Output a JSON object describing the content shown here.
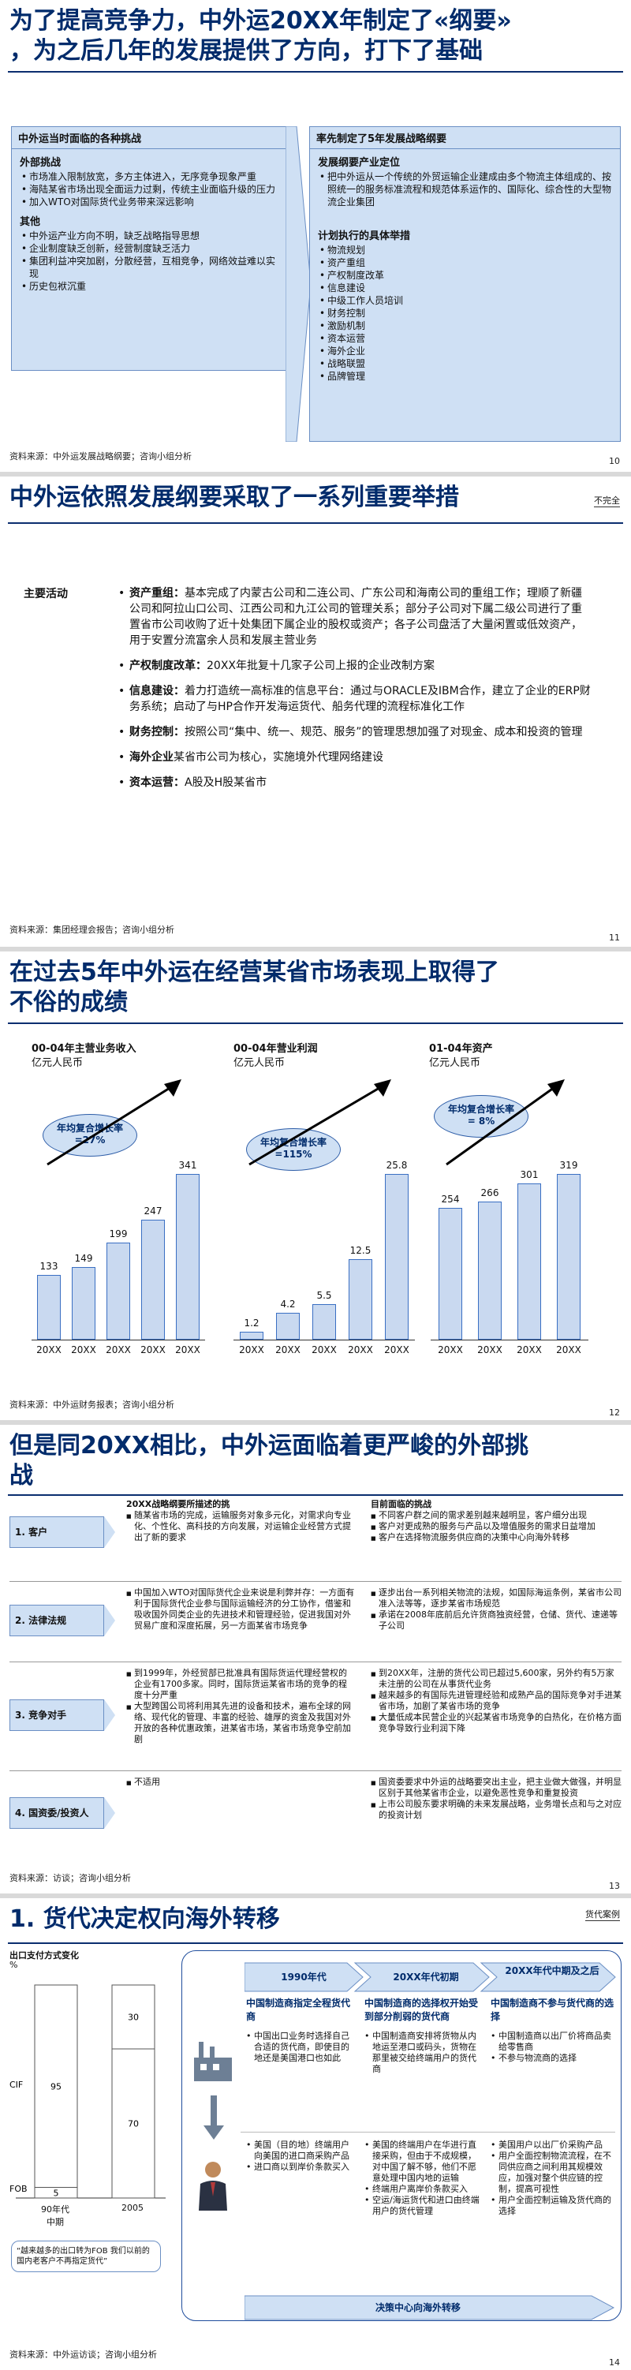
{
  "slides": [
    {
      "title_line1": "为了提高竞争力，中外运20XX年制定了«纲要»",
      "title_line2": "，为之后几年的发展提供了方向，打下了基础",
      "left_panel": {
        "title": "中外运当时面临的各种挑战",
        "sec1_title": "外部挑战",
        "sec1_items": [
          "市场准入限制放宽，多方主体进入，无序竞争现象严重",
          "海陆某省市场出现全面运力过剩，传统主业面临升级的压力",
          "加入WTO对国际货代业务带来深远影响"
        ],
        "sec2_title": "其他",
        "sec2_items": [
          "中外运产业方向不明，缺乏战略指导思想",
          "企业制度缺乏创新，经营制度缺乏活力",
          "集团利益冲突加剧，分散经营，互相竞争，网络效益难以实现",
          "历史包袱沉重"
        ]
      },
      "right_panel": {
        "title": "率先制定了5年发展战略纲要",
        "sec1_title": "发展纲要产业定位",
        "sec1_items": [
          "把中外运从一个传统的外贸运输企业建成由多个物流主体组成的、按照统一的服务标准流程和规范体系运作的、国际化、综合性的大型物流企业集团"
        ],
        "sec2_title": "计划执行的具体举措",
        "sec2_items": [
          "物流规划",
          "资产重组",
          "产权制度改革",
          "信息建设",
          "中级工作人员培训",
          "财务控制",
          "激励机制",
          "资本运营",
          "海外企业",
          "战略联盟",
          "品牌管理"
        ]
      },
      "source": "资料来源：中外运发展战略纲要；咨询小组分析",
      "page": "10"
    },
    {
      "title": "中外运依照发展纲要采取了一系列重要举措",
      "tag": "不完全",
      "label": "主要活动",
      "items": [
        {
          "head": "资产重组：",
          "text": "基本完成了内蒙古公司和二连公司、广东公司和海南公司的重组工作；理顺了新疆公司和阿拉山口公司、江西公司和九江公司的管理关系；部分子公司对下属二级公司进行了重置省市公司收购了近十处集团下属企业的股权或资产；各子公司盘活了大量闲置或低效资产，用于安置分流富余人员和发展主营业务"
        },
        {
          "head": "产权制度改革：",
          "text": "20XX年批复十几家子公司上报的企业改制方案"
        },
        {
          "head": "信息建设：",
          "text": "着力打造统一高标准的信息平台：通过与ORACLE及IBM合作，建立了企业的ERP财务系统；启动了与HP合作开发海运货代、船务代理的流程标准化工作"
        },
        {
          "head": "财务控制：",
          "text": "按照公司“集中、统一、规范、服务”的管理思想加强了对现金、成本和投资的管理"
        },
        {
          "head": "海外企业",
          "text": "某省市公司为核心，实施境外代理网络建设"
        },
        {
          "head": "资本运营：",
          "text": "A股及H股某省市"
        }
      ],
      "source": "资料来源：集团经理会报告；咨询小组分析",
      "page": "11"
    },
    {
      "title_line1": "在过去5年中外运在经营某省市场表现上取得了",
      "title_line2": "不俗的成绩",
      "charts": [
        {
          "title": "00-04年主营业务收入",
          "unit": "亿元人民币",
          "cagr_label": "年均复合增长率",
          "cagr": "=27%",
          "categories": [
            "20XX",
            "20XX",
            "20XX",
            "20XX",
            "20XX"
          ],
          "values": [
            133,
            149,
            199,
            247,
            341
          ]
        },
        {
          "title": "00-04年营业利润",
          "unit": "亿元人民币",
          "cagr_label": "年均复合增长率",
          "cagr": "=115%",
          "categories": [
            "20XX",
            "20XX",
            "20XX",
            "20XX",
            "20XX"
          ],
          "values": [
            1.2,
            4.2,
            5.5,
            12.5,
            25.8
          ]
        },
        {
          "title": "01-04年资产",
          "unit": "亿元人民币",
          "cagr_label": "年均复合增长率",
          "cagr": "= 8%",
          "categories": [
            "20XX",
            "20XX",
            "20XX",
            "20XX"
          ],
          "values": [
            254,
            266,
            301,
            319
          ]
        }
      ],
      "source": "资料来源：中外运财务报表；咨询小组分析",
      "page": "12"
    },
    {
      "title_line1": "但是同20XX相比，中外运面临着更严峻的外部挑",
      "title_line2": "战",
      "col1_head": "20XX战略纲要所描述的挑",
      "col2_head": "目前面临的挑战",
      "rows": [
        {
          "label": "1. 客户",
          "left": [
            "随某省市场的完成，运输服务对象多元化，对需求向专业化、个性化、高科技的方向发展，对运输企业经营方式提出了新的要求"
          ],
          "right": [
            "不同客户群之间的需求差别越来越明显，客户细分出现",
            "客户对更成熟的服务与产品以及增值服务的需求日益增加",
            "客户在选择物流服务供应商的决策中心向海外转移"
          ]
        },
        {
          "label": "2. 法律法规",
          "left": [
            "中国加入WTO对国际货代企业来说是利弊并存：一方面有利于国际货代企业参与国际运输经济的分工协作，借鉴和吸收国外同类企业的先进技术和管理经验，促进我国对外贸易广度和深度拓展，另一方面某省市场竞争"
          ],
          "right": [
            "逐步出台一系列相关物流的法规，如国际海运条例，某省市公司准入法等等，逐步某省市场规范",
            "承诺在2008年底前后允许货商独资经营，仓储、货代、速递等子公司"
          ]
        },
        {
          "label": "3. 竞争对手",
          "left": [
            "到1999年，外经贸部已批准具有国际货运代理经营权的企业有1700多家。同时，国际货运某省市场的竞争的程度十分严重",
            "大型跨国公司将利用其先进的设备和技术，遍布全球的网络、现代化的管理、丰富的经验、雄厚的资金及我国对外开放的各种优惠政策，进某省市场，某省市场竞争空前加剧"
          ],
          "right": [
            "到20XX年，注册的货代公司已超过5,600家，另外约有5万家未注册的公司在从事货代业务",
            "越来越多的有国际先进管理经验和成熟产品的国际竞争对手进某省市场，加剧了某省市场的竞争",
            "大量低成本民营企业的兴起某省市场竞争的白热化，在价格方面竞争导致行业利润下降"
          ]
        },
        {
          "label": "4. 国资委/投资人",
          "left": [
            "不适用"
          ],
          "right": [
            "国资委要求中外运的战略要突出主业，把主业做大做强，并明显区别于其他某省市企业，以避免恶性竞争和重复投资",
            "上市公司股东要求明确的未来发展战略，业务增长点和与之对应的投资计划"
          ]
        }
      ],
      "source": "资料来源：访谈；咨询小组分析",
      "page": "13"
    },
    {
      "title": "1. 货代决定权向海外转移",
      "tag": "货代案例",
      "chart_title": "出口支付方式变化",
      "chart_unit": "%",
      "chart_data": {
        "type": "bar",
        "categories": [
          "90年代中期",
          "2005"
        ],
        "series": [
          {
            "name": "FOB",
            "values": [
              5,
              70
            ]
          },
          {
            "name": "CIF",
            "values": [
              95,
              30
            ]
          }
        ]
      },
      "cat_label_1": "90年代\n中期",
      "cat_label_2": "2005",
      "quote": "“越来越多的出口转为FOB 我们以前的国内老客户不再指定货代”",
      "arrows": [
        "1990年代",
        "20XX年代初期",
        "20XX年代中期及之后"
      ],
      "cols": [
        {
          "head": "中国制造商指定全程货代商",
          "top": [
            "中国出口业务时选择自己合适的货代商，即使目的地还是美国港口也如此"
          ],
          "bottom": [
            "美国（目的地）终端用户向美国的进口商采购产品",
            "进口商以到岸价条款买入"
          ]
        },
        {
          "head": "中国制造商的选择权开始受到部分削弱的货代商",
          "top": [
            "中国制造商安排将货物从内地运至港口或码头，货物在那里被交给终端用户的货代商"
          ],
          "bottom": [
            "美国的终端用户在华进行直接采购，但由于不成规模，对中国了解不够，他们不愿意处理中国内地的运输",
            "终端用户离岸价条款买入",
            "空运/海运货代和进口由终端用户的货代管理"
          ]
        },
        {
          "head": "中国制造商不参与货代商的选择",
          "top": [
            "中国制造商以出厂价将商品卖给零售商",
            "不参与物流商的选择"
          ],
          "bottom": [
            "美国用户以出厂价采购产品",
            "用户全面控制物流流程，在不同供应商之间利用其规模效应，加强对整个供应链的控制，提高可视性",
            "用户全面控制运输及货代商的选择"
          ]
        }
      ],
      "bottom_arrow": "决策中心向海外转移",
      "source": "资料来源：中外运访谈；咨询小组分析",
      "page": "14"
    }
  ]
}
